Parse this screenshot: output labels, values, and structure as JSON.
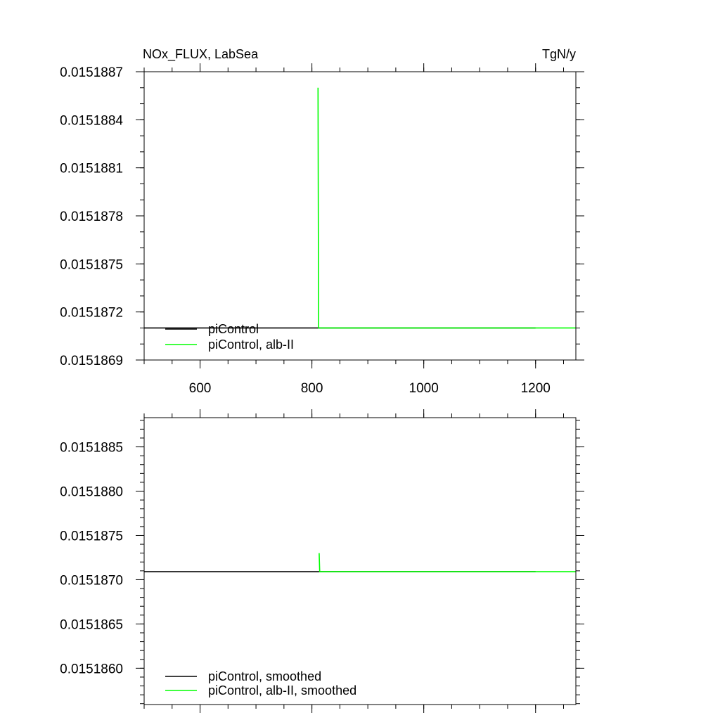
{
  "title_left": "NOx_FLUX, LabSea",
  "title_right": "TgN/y",
  "colors": {
    "piControl": "#000000",
    "alb_II": "#00ff00"
  },
  "chart_data": [
    {
      "type": "line",
      "xlim": [
        500,
        1272
      ],
      "ylim": [
        0.0151869,
        0.0151887
      ],
      "xticks": [
        600,
        800,
        1000,
        1200
      ],
      "xtick_labels": [
        "600",
        "800",
        "1000",
        "1200"
      ],
      "x_minor_step": 50,
      "yticks": [
        0.0151869,
        0.0151872,
        0.0151875,
        0.0151878,
        0.0151881,
        0.0151884,
        0.0151887
      ],
      "ytick_labels": [
        "0.0151869",
        "0.0151872",
        "0.0151875",
        "0.0151878",
        "0.0151881",
        "0.0151884",
        "0.0151887"
      ],
      "y_minor_step": 1e-07,
      "grid": false,
      "legend_placement": "bottom-left",
      "series": [
        {
          "name": "piControl",
          "color": "#000000",
          "points": [
            [
              500,
              0.0151871
            ],
            [
              1200,
              0.0151871
            ]
          ]
        },
        {
          "name": "piControl, alb-II",
          "color": "#00ff00",
          "points": [
            [
              811,
              0.0151886
            ],
            [
              812,
              0.0151871
            ],
            [
              1272,
              0.0151871
            ]
          ]
        }
      ]
    },
    {
      "type": "line",
      "xlim": [
        500,
        1272
      ],
      "ylim": [
        0.01518559,
        0.01518883
      ],
      "xticks": [
        600,
        800,
        1000,
        1200
      ],
      "xtick_labels": [
        "",
        "",
        "",
        ""
      ],
      "x_minor_step": 50,
      "yticks": [
        0.015186,
        0.0151865,
        0.015187,
        0.0151875,
        0.015188,
        0.0151885
      ],
      "ytick_labels": [
        "0.0151860",
        "0.0151865",
        "0.0151870",
        "0.0151875",
        "0.0151880",
        "0.0151885"
      ],
      "y_minor_step": 1e-07,
      "grid": false,
      "legend_placement": "bottom-left",
      "series": [
        {
          "name": "piControl, smoothed",
          "color": "#000000",
          "points": [
            [
              500,
              0.01518709
            ],
            [
              1200,
              0.01518709
            ]
          ]
        },
        {
          "name": "piControl, alb-II, smoothed",
          "color": "#00ff00",
          "points": [
            [
              813,
              0.0151873
            ],
            [
              814,
              0.01518709
            ],
            [
              1272,
              0.01518709
            ]
          ]
        }
      ]
    }
  ]
}
